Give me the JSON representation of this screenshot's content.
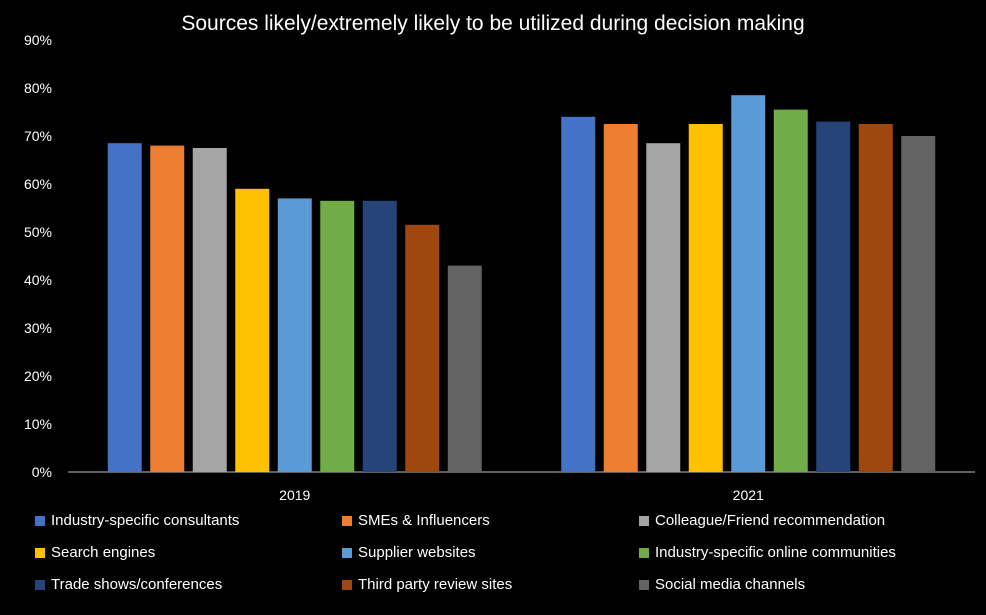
{
  "chart_data": {
    "type": "bar",
    "title": "Sources likely/extremely likely to be utilized during decision making",
    "categories": [
      "2019",
      "2021"
    ],
    "ylim": [
      0,
      90
    ],
    "yticks": [
      "0%",
      "10%",
      "20%",
      "30%",
      "40%",
      "50%",
      "60%",
      "70%",
      "80%",
      "90%"
    ],
    "grid": false,
    "legend_position": "bottom",
    "series": [
      {
        "name": "Industry-specific consultants",
        "color": "#4472C4",
        "values": [
          68.5,
          74
        ]
      },
      {
        "name": "SMEs & Influencers",
        "color": "#ED7D31",
        "values": [
          68,
          72.5
        ]
      },
      {
        "name": "Colleague/Friend recommendation",
        "color": "#A5A5A5",
        "values": [
          67.5,
          68.5
        ]
      },
      {
        "name": "Search engines",
        "color": "#FFC000",
        "values": [
          59,
          72.5
        ]
      },
      {
        "name": "Supplier websites",
        "color": "#5B9BD5",
        "values": [
          57,
          78.5
        ]
      },
      {
        "name": "Industry-specific online communities",
        "color": "#70AD47",
        "values": [
          56.5,
          75.5
        ]
      },
      {
        "name": "Trade shows/conferences",
        "color": "#264478",
        "values": [
          56.5,
          73
        ]
      },
      {
        "name": "Third party review sites",
        "color": "#9E480E",
        "values": [
          51.5,
          72.5
        ]
      },
      {
        "name": "Social media channels",
        "color": "#636363",
        "values": [
          43,
          70
        ]
      }
    ]
  }
}
